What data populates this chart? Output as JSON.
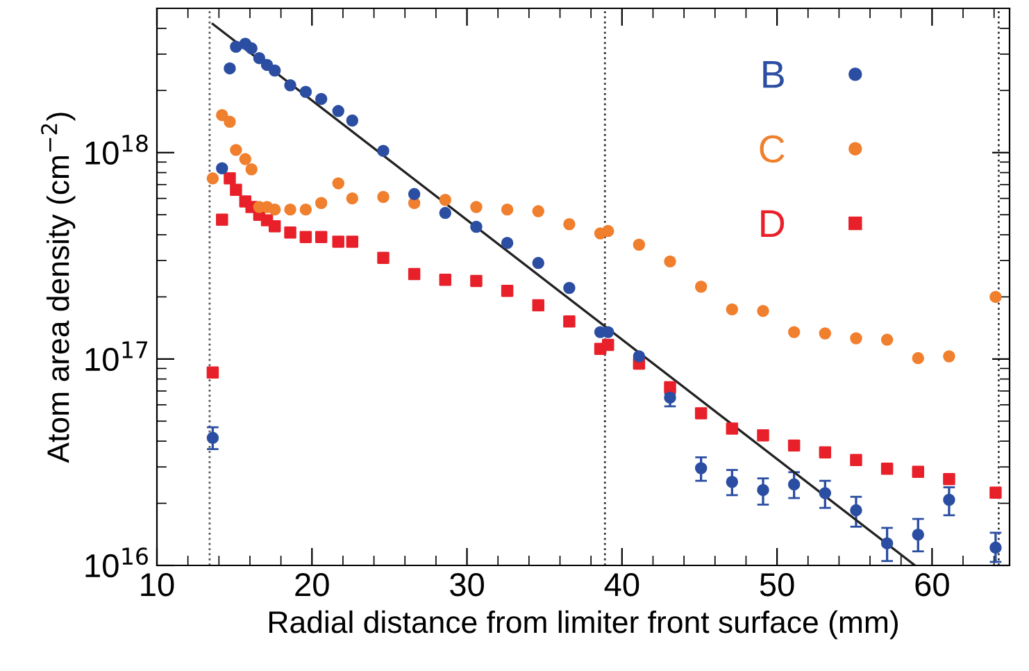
{
  "chart_data": {
    "type": "scatter",
    "xlabel": "Radial distance from limiter front surface (mm)",
    "ylabel": "Atom area density (cm$^{−2}$)",
    "log": "y",
    "xlim": [
      10,
      65
    ],
    "xticks": [
      10,
      20,
      30,
      40,
      50,
      60
    ],
    "ylim": [
      1e+16,
      5e+18
    ],
    "yticks": [
      {
        "value": 1e+16,
        "label": "10$^{16}$"
      },
      {
        "value": 1e+17,
        "label": "10$^{17}$"
      },
      {
        "value": 1e+18,
        "label": "10$^{18}$"
      }
    ],
    "grid": false,
    "legend": "top right",
    "marker": "circle",
    "series": [
      {
        "name": "B",
        "color": "#2b4ea2",
        "x": [
          13.6,
          14.2,
          14.7,
          15.1,
          15.7,
          16.1,
          16.6,
          17.1,
          17.6,
          18.6,
          19.6,
          20.6,
          21.7,
          22.6,
          24.6,
          26.6,
          28.6,
          30.6,
          32.6,
          34.6,
          36.6,
          38.6,
          39.1,
          41.1,
          43.1,
          45.1,
          47.1,
          49.1,
          51.1,
          53.1,
          55.1,
          57.1,
          59.1,
          61.1,
          64.1
        ],
        "values": [
          4.15e+16,
          8.4e+17,
          2.56e+18,
          3.26e+18,
          3.37e+18,
          3.2e+18,
          2.87e+18,
          2.66e+18,
          2.5e+18,
          2.12e+18,
          1.97e+18,
          1.82e+18,
          1.59e+18,
          1.43e+18,
          1.02e+18,
          6.3e+17,
          5.1e+17,
          4.37e+17,
          3.65e+17,
          2.92e+17,
          2.21e+17,
          1.35e+17,
          1.35e+17,
          1.03e+17,
          6.5e+16,
          2.96e+16,
          2.54e+16,
          2.32e+16,
          2.47e+16,
          2.24e+16,
          1.85e+16,
          1.28e+16,
          1.41e+16,
          2.08e+16,
          1.22e+16
        ],
        "errors": [
          [
            3.66e+16,
            4.67e+16
          ],
          null,
          null,
          null,
          null,
          null,
          null,
          null,
          null,
          null,
          null,
          null,
          null,
          null,
          null,
          null,
          null,
          null,
          null,
          null,
          null,
          null,
          null,
          null,
          [
            5.9e+16,
            6.8e+16
          ],
          [
            2.57e+16,
            3.34e+16
          ],
          [
            2.19e+16,
            2.9e+16
          ],
          [
            1.97e+16,
            2.64e+16
          ],
          [
            2.12e+16,
            2.83e+16
          ],
          [
            1.9e+16,
            2.57e+16
          ],
          [
            1.54e+16,
            2.15e+16
          ],
          [
            1.05e+16,
            1.52e+16
          ],
          [
            1.17e+16,
            1.68e+16
          ],
          [
            1.75e+16,
            2.39e+16
          ],
          [
            1.04e+16,
            1.44e+16
          ]
        ]
      },
      {
        "name": "C",
        "color": "#f07f2e",
        "x": [
          13.6,
          14.2,
          14.7,
          15.1,
          15.7,
          16.1,
          16.6,
          17.1,
          17.6,
          18.6,
          19.6,
          20.6,
          21.7,
          22.6,
          24.6,
          26.6,
          28.6,
          30.6,
          32.6,
          34.6,
          36.6,
          38.6,
          39.1,
          41.1,
          43.1,
          45.1,
          47.1,
          49.1,
          51.1,
          53.1,
          55.1,
          57.1,
          59.1,
          61.1,
          64.1
        ],
        "values": [
          7.5e+17,
          1.52e+18,
          1.41e+18,
          1.03e+18,
          9.3e+17,
          8.3e+17,
          5.45e+17,
          5.45e+17,
          5.3e+17,
          5.3e+17,
          5.3e+17,
          5.7e+17,
          7.1e+17,
          6e+17,
          6.1e+17,
          5.7e+17,
          5.9e+17,
          5.45e+17,
          5.3e+17,
          5.2e+17,
          4.5e+17,
          4.06e+17,
          4.17e+17,
          3.58e+17,
          2.97e+17,
          2.24e+17,
          1.74e+17,
          1.71e+17,
          1.35e+17,
          1.33e+17,
          1.26e+17,
          1.24e+17,
          1.01e+17,
          1.03e+17,
          2e+17
        ]
      },
      {
        "name": "D",
        "color": "#e8202a",
        "marker": "square",
        "x": [
          13.6,
          14.2,
          14.7,
          15.1,
          15.7,
          16.1,
          16.6,
          17.1,
          17.6,
          18.6,
          19.6,
          20.6,
          21.7,
          22.6,
          24.6,
          26.6,
          28.6,
          30.6,
          32.6,
          34.6,
          36.6,
          38.6,
          39.1,
          41.1,
          43.1,
          45.1,
          47.1,
          49.1,
          51.1,
          53.1,
          55.1,
          57.1,
          59.1,
          61.1,
          64.1
        ],
        "values": [
          8.6e+16,
          4.73e+17,
          7.5e+17,
          6.6e+17,
          5.8e+17,
          5.45e+17,
          5e+17,
          4.7e+17,
          4.4e+17,
          4.1e+17,
          3.9e+17,
          3.9e+17,
          3.7e+17,
          3.7e+17,
          3.09e+17,
          2.58e+17,
          2.42e+17,
          2.39e+17,
          2.14e+17,
          1.82e+17,
          1.52e+17,
          1.12e+17,
          1.17e+17,
          9.5e+16,
          7.3e+16,
          5.46e+16,
          4.6e+16,
          4.27e+16,
          3.81e+16,
          3.53e+16,
          3.24e+16,
          2.94e+16,
          2.84e+16,
          2.62e+16,
          2.25e+16
        ]
      },
      {
        "type": "line",
        "color": "#222222",
        "marker": "none",
        "x": [
          13.6,
          58.9
        ],
        "values": [
          4.2e+18,
          1e+16
        ]
      }
    ],
    "ref_lines": [
      {
        "axis": "x",
        "value": 13.4,
        "color": "#555555",
        "line_style": "dotted"
      },
      {
        "axis": "x",
        "value": 38.9,
        "color": "#333333",
        "line_style": "dotted"
      },
      {
        "axis": "x",
        "value": 64.3,
        "color": "#333333",
        "line_style": "dotted"
      }
    ]
  }
}
